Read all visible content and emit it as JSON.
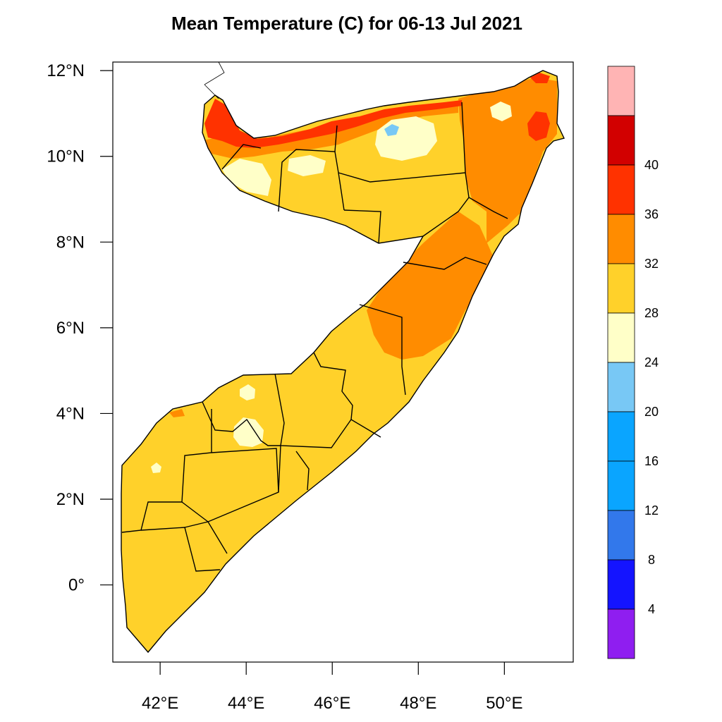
{
  "title": "Mean Temperature (C) for 06-13 Jul 2021",
  "map": {
    "lon_range": [
      40.9,
      51.6
    ],
    "lat_range": [
      -1.8,
      12.2
    ],
    "x_ticks": [
      {
        "lon": 42,
        "label": "42°E"
      },
      {
        "lon": 44,
        "label": "44°E"
      },
      {
        "lon": 46,
        "label": "46°E"
      },
      {
        "lon": 48,
        "label": "48°E"
      },
      {
        "lon": 50,
        "label": "50°E"
      }
    ],
    "y_ticks": [
      {
        "lat": 12,
        "label": "12°N"
      },
      {
        "lat": 10,
        "label": "10°N"
      },
      {
        "lat": 8,
        "label": "8°N"
      },
      {
        "lat": 6,
        "label": "6°N"
      },
      {
        "lat": 4,
        "label": "4°N"
      },
      {
        "lat": 2,
        "label": "2°N"
      },
      {
        "lat": 0,
        "label": "0°"
      }
    ]
  },
  "colorbar": {
    "colors": [
      "#8f1ef0",
      "#1414ff",
      "#3278eb",
      "#0aa5ff",
      "#0aa5ff",
      "#78c8f5",
      "#ffffc8",
      "#ffd12a",
      "#ff8c00",
      "#ff3200",
      "#d20000",
      "#ffb4b4"
    ],
    "labels": [
      "4",
      "8",
      "12",
      "16",
      "20",
      "24",
      "28",
      "32",
      "36",
      "40"
    ]
  },
  "palette": {
    "yellow": "#ffd12a",
    "pale": "#ffffc8",
    "orange": "#ff8c00",
    "red": "#ff3200",
    "darkred": "#d20000",
    "lightblue": "#78c8f5",
    "border": "#000000"
  }
}
